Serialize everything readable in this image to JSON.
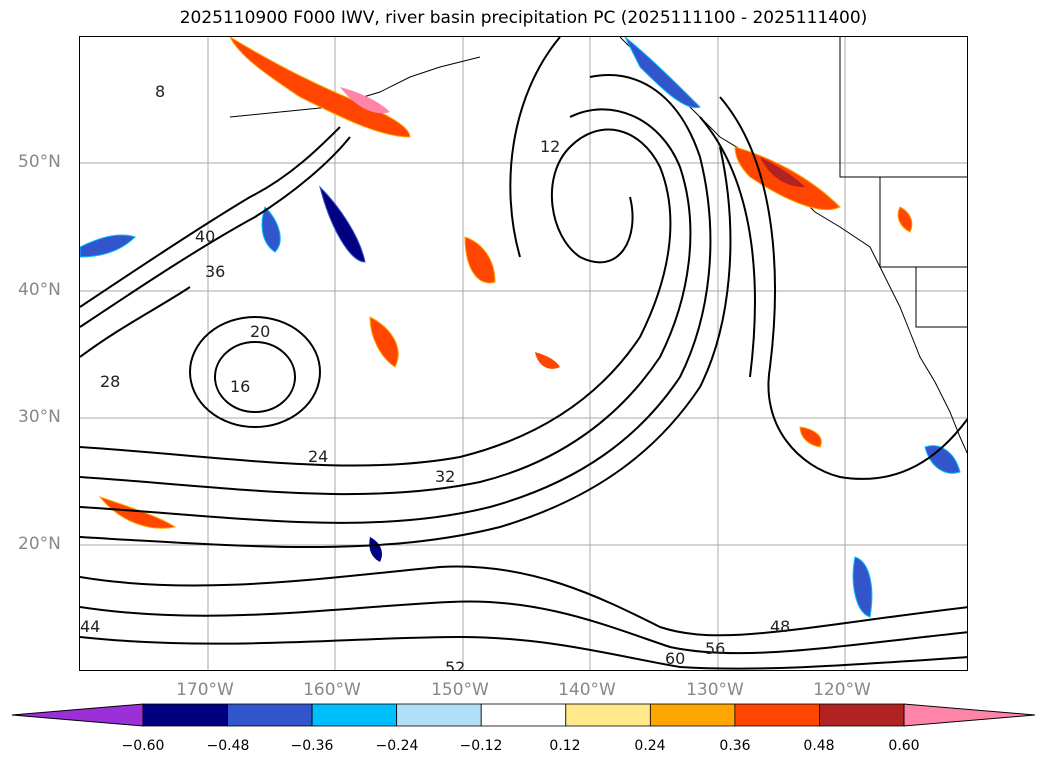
{
  "title": "2025110900 F000 IWV, river basin precipitation PC (2025111100 - 2025111400)",
  "lat_labels": [
    "50°N",
    "40°N",
    "30°N",
    "20°N"
  ],
  "lon_labels": [
    "170°W",
    "160°W",
    "150°W",
    "140°W",
    "130°W",
    "120°W"
  ],
  "contour_labels": [
    "8",
    "12",
    "16",
    "20",
    "24",
    "28",
    "32",
    "36",
    "40",
    "44",
    "48",
    "52",
    "56",
    "60"
  ],
  "colorbar": {
    "ticks": [
      "−0.60",
      "−0.48",
      "−0.36",
      "−0.24",
      "−0.12",
      "0.12",
      "0.24",
      "0.36",
      "0.48",
      "0.60"
    ],
    "colors": [
      "#9b30d9",
      "#000080",
      "#3355cc",
      "#00bfff",
      "#b0e0f8",
      "#ffffff",
      "#ffe98a",
      "#ffa500",
      "#ff4500",
      "#b22222",
      "#ff85a8"
    ]
  }
}
